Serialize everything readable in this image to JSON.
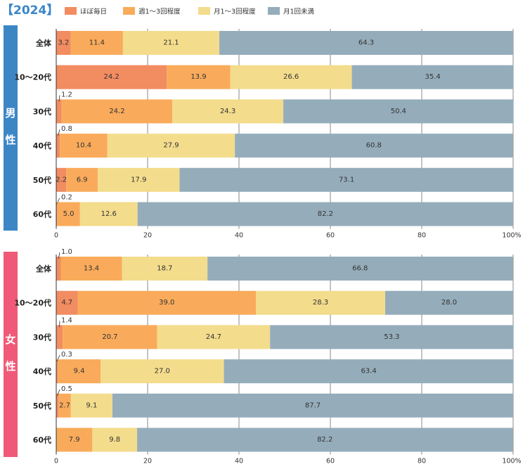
{
  "chart_data": {
    "type": "bar",
    "stacked": true,
    "orientation": "horizontal",
    "title": "【2024】",
    "legend": {
      "placement": "top",
      "entries": [
        {
          "name": "ほぼ毎日",
          "color": "#f28c61"
        },
        {
          "name": "週1～3回程度",
          "color": "#f9ab5b"
        },
        {
          "name": "月1～3回程度",
          "color": "#f3dc8c"
        },
        {
          "name": "月1回未満",
          "color": "#95adbb"
        }
      ]
    },
    "xlim": [
      0,
      100
    ],
    "xticks": [
      "0",
      "20",
      "40",
      "60",
      "80",
      "100%"
    ],
    "grid": true,
    "panels": [
      {
        "group": "男性",
        "group_chars": [
          "男",
          "性"
        ],
        "group_color": "#3d86c6",
        "first_label_color": "#3d86c6",
        "categories": [
          "全体",
          "10～20代",
          "30代",
          "40代",
          "50代",
          "60代"
        ],
        "series": [
          {
            "name": "ほぼ毎日",
            "values": [
              3.2,
              24.2,
              1.2,
              0.8,
              2.2,
              0.2
            ]
          },
          {
            "name": "週1～3回程度",
            "values": [
              11.4,
              13.9,
              24.2,
              10.4,
              6.9,
              5.0
            ]
          },
          {
            "name": "月1～3回程度",
            "values": [
              21.1,
              26.6,
              24.3,
              27.9,
              17.9,
              12.6
            ]
          },
          {
            "name": "月1回未満",
            "values": [
              64.3,
              35.4,
              50.4,
              60.8,
              73.1,
              82.2
            ]
          }
        ]
      },
      {
        "group": "女性",
        "group_chars": [
          "女",
          "性"
        ],
        "group_color": "#f05a78",
        "first_label_color": "#f05a78",
        "categories": [
          "全体",
          "10～20代",
          "30代",
          "40代",
          "50代",
          "60代"
        ],
        "series": [
          {
            "name": "ほぼ毎日",
            "values": [
              1.0,
              4.7,
              1.4,
              0.3,
              0.5,
              null
            ]
          },
          {
            "name": "週1～3回程度",
            "values": [
              13.4,
              39.0,
              20.7,
              9.4,
              2.7,
              7.9
            ]
          },
          {
            "name": "月1～3回程度",
            "values": [
              18.7,
              28.3,
              24.7,
              27.0,
              9.1,
              9.8
            ]
          },
          {
            "name": "月1回未満",
            "values": [
              66.8,
              28.0,
              53.3,
              63.4,
              87.7,
              82.2
            ]
          }
        ]
      }
    ]
  }
}
